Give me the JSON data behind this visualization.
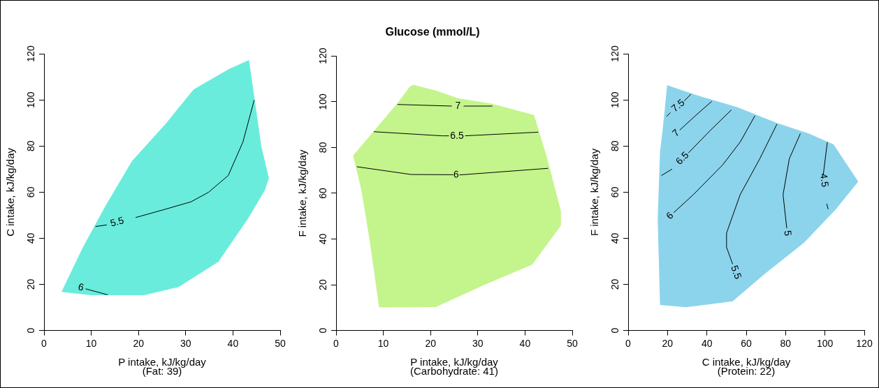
{
  "chart_data": [
    {
      "type": "line",
      "xlabel": "P intake, kJ/kg/day\n(Fat: 39)",
      "ylabel": "C intake, kJ/kg/day",
      "xlim": [
        0,
        50
      ],
      "ylim": [
        0,
        120
      ],
      "xticks": [
        0,
        10,
        20,
        30,
        40,
        50
      ],
      "yticks": [
        0,
        20,
        40,
        60,
        80,
        100,
        120
      ],
      "series": [
        {
          "type": "area",
          "color": "#6aecdc",
          "x": [
            3.7,
            10,
            21.2,
            28.5,
            36.9,
            43.2,
            46.8,
            47.6,
            46,
            44.5,
            43.4,
            39.2,
            31.7,
            25.9,
            18.6,
            12.9,
            8.2,
            3.7
          ],
          "values": [
            16.8,
            15.3,
            15.3,
            18.9,
            29.8,
            48.5,
            61,
            66.1,
            80,
            101.6,
            117.3,
            113.4,
            104.6,
            90,
            73.4,
            53.7,
            36,
            16.8
          ]
        },
        {
          "type": "line",
          "name": "5.5",
          "color": "#000000",
          "x": [
            10.9,
            13.3,
            15.5,
            19.4,
            25,
            31.1,
            34.8,
            39,
            42.1,
            44.5
          ],
          "values": [
            45.1,
            45.8,
            null,
            49,
            52.2,
            55.8,
            59.9,
            67.2,
            81.7,
            99.9
          ]
        },
        {
          "type": "line",
          "name": "6",
          "color": "#000000",
          "x": [
            8.8,
            13.5
          ],
          "values": [
            18.1,
            15.5
          ]
        }
      ]
    },
    {
      "type": "line",
      "title": "Glucose (mmol/L)",
      "xlabel": "P intake, kJ/kg/day\n(Carbohydrate: 41)",
      "ylabel": "F intake, kJ/kg/day",
      "xlim": [
        0,
        50
      ],
      "ylim": [
        0,
        120
      ],
      "xticks": [
        0,
        10,
        20,
        30,
        40,
        50
      ],
      "yticks": [
        0,
        20,
        40,
        60,
        80,
        100,
        120
      ],
      "series": [
        {
          "type": "area",
          "color": "#c4f48c",
          "x": [
            3.6,
            13,
            15.6,
            16.4,
            21.1,
            25.8,
            32.9,
            41.9,
            44.6,
            47.6,
            47.6,
            41.5,
            31.3,
            21.1,
            9.1,
            7.2,
            5.4,
            3.6
          ],
          "values": [
            76.5,
            99.4,
            106.6,
            107.4,
            104.9,
            101.5,
            99.2,
            94.2,
            76,
            52.1,
            45.9,
            28.8,
            19.9,
            10.3,
            10.1,
            38.1,
            61,
            76.5
          ]
        },
        {
          "type": "line",
          "name": "6",
          "color": "#000000",
          "x": [
            4.4,
            15.9,
            24.8,
            25.4,
            26.1,
            44.9
          ],
          "values": [
            71.6,
            68.2,
            68.1,
            null,
            68,
            70.9
          ]
        },
        {
          "type": "line",
          "name": "6.5",
          "color": "#000000",
          "x": [
            8,
            22.4,
            23.9,
            25.6,
            27.3,
            42.8
          ],
          "values": [
            86.9,
            85.1,
            85.1,
            null,
            85.1,
            86.7
          ]
        },
        {
          "type": "line",
          "name": "7",
          "color": "#000000",
          "x": [
            13,
            24.5,
            25.8,
            27,
            33.1
          ],
          "values": [
            98.8,
            98.1,
            null,
            98.1,
            98.1
          ]
        }
      ]
    },
    {
      "type": "line",
      "xlabel": "C intake, kJ/kg/day\n(Protein: 22)",
      "ylabel": "F intake, kJ/kg/day",
      "xlim": [
        0,
        120
      ],
      "ylim": [
        0,
        120
      ],
      "xticks": [
        0,
        20,
        40,
        60,
        80,
        100,
        120
      ],
      "yticks": [
        0,
        20,
        40,
        60,
        80,
        100,
        120
      ],
      "series": [
        {
          "type": "area",
          "color": "#8cd4ec",
          "x": [
            19.8,
            24.4,
            36.9,
            55.6,
            75.6,
            91.9,
            104.4,
            116.9,
            105.6,
            89.4,
            69.4,
            53.1,
            29.4,
            16.2,
            15,
            16.2,
            17.5,
            18.7,
            19.8
          ],
          "values": [
            106.4,
            105,
            101.5,
            96.8,
            90,
            85.4,
            80.7,
            64.6,
            52.6,
            38.1,
            24.6,
            12.7,
            10.1,
            11.1,
            48.5,
            77.6,
            86.9,
            96.8,
            106.4
          ]
        },
        {
          "type": "line",
          "name": "7.5",
          "color": "#000000",
          "x": [
            19.5,
            21.5,
            25.5,
            28.5,
            31.9
          ],
          "values": [
            92.8,
            94.5,
            null,
            99.5,
            102.5
          ]
        },
        {
          "type": "line",
          "name": "7",
          "color": "#000000",
          "x": [
            26.2,
            34,
            42.5
          ],
          "values": [
            86.9,
            93,
            99.4
          ]
        },
        {
          "type": "line",
          "name": "6.5",
          "color": "#000000",
          "x": [
            16.9,
            22.3,
            27.7,
            30.6,
            41.9,
            52.5
          ],
          "values": [
            67.2,
            70,
            null,
            77,
            86.9,
            95.7
          ]
        },
        {
          "type": "line",
          "name": "6",
          "color": "#000000",
          "x": [
            23.1,
            33.1,
            48.1,
            56.9,
            64.4
          ],
          "values": [
            51.1,
            58.9,
            71.9,
            81.7,
            93.1
          ]
        },
        {
          "type": "line",
          "name": "5.5",
          "color": "#000000",
          "x": [
            53.1,
            50,
            50,
            56.9,
            66.9,
            75.6
          ],
          "values": [
            28.8,
            36.1,
            42.3,
            58.9,
            74.5,
            89.5
          ]
        },
        {
          "type": "line",
          "name": "5",
          "color": "#000000",
          "x": [
            80.6,
            78.7,
            81.9,
            87.5
          ],
          "values": [
            44.3,
            58.9,
            74.5,
            85.4
          ]
        },
        {
          "type": "line",
          "name": "4.5",
          "color": "#000000",
          "x": [
            101.2,
            99.1,
            99.4,
            100.9,
            101.6
          ],
          "values": [
            81.7,
            67.2,
            null,
            55,
            52.6
          ]
        }
      ]
    }
  ]
}
